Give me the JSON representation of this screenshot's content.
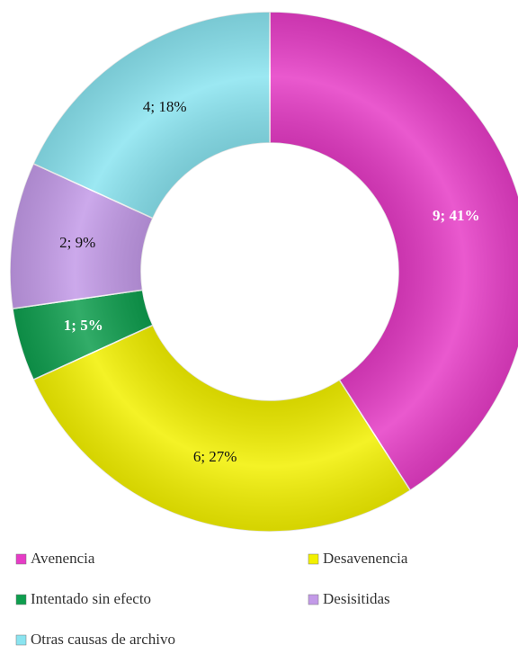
{
  "chart_data": {
    "type": "donut",
    "categories": [
      "Avenencia",
      "Desavenencia",
      "Intentado sin efecto",
      "Desisitidas",
      "Otras causas de archivo"
    ],
    "values": [
      9,
      6,
      1,
      2,
      4
    ],
    "value_labels": [
      "9; 41%",
      "6; 27%",
      "1; 5%",
      "2; 9%",
      "4; 18%"
    ],
    "colors": [
      "#e63cc6",
      "#f2f000",
      "#0e9e4e",
      "#c39ae8",
      "#8ae4f0"
    ]
  }
}
